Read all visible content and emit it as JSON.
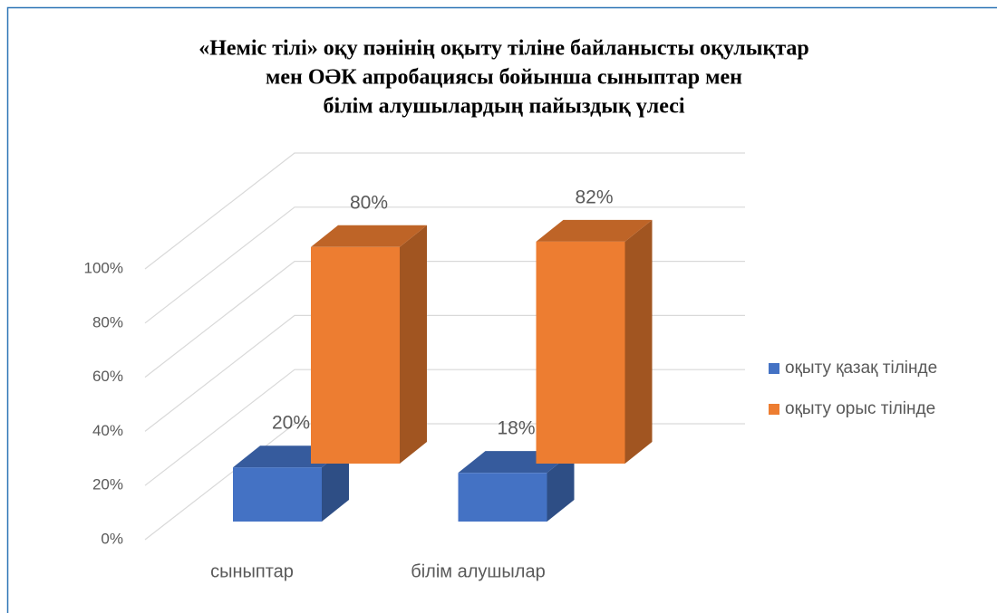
{
  "chart_data": {
    "type": "bar3d",
    "title": [
      "«Неміс тілі» оқу пәнінің оқыту тіліне байланысты оқулықтар",
      "мен ОӘК апробациясы бойынша сыныптар мен",
      "білім алушылардың пайыздық үлесі"
    ],
    "categories": [
      "сыныптар",
      "білім алушылар"
    ],
    "series": [
      {
        "name": "оқыту қазақ тілінде",
        "color": "#4472c4",
        "values": [
          20,
          18
        ],
        "value_labels": [
          "20%",
          "18%"
        ]
      },
      {
        "name": "оқыту орыс тілінде",
        "color": "#ed7d31",
        "values": [
          80,
          82
        ],
        "value_labels": [
          "80%",
          "82%"
        ]
      }
    ],
    "ylim": [
      0,
      100
    ],
    "yticks": [
      {
        "value": 0,
        "label": "0%"
      },
      {
        "value": 20,
        "label": "20%"
      },
      {
        "value": 40,
        "label": "40%"
      },
      {
        "value": 60,
        "label": "60%"
      },
      {
        "value": 80,
        "label": "80%"
      },
      {
        "value": 100,
        "label": "100%"
      }
    ],
    "grid": true,
    "legend": "right"
  }
}
